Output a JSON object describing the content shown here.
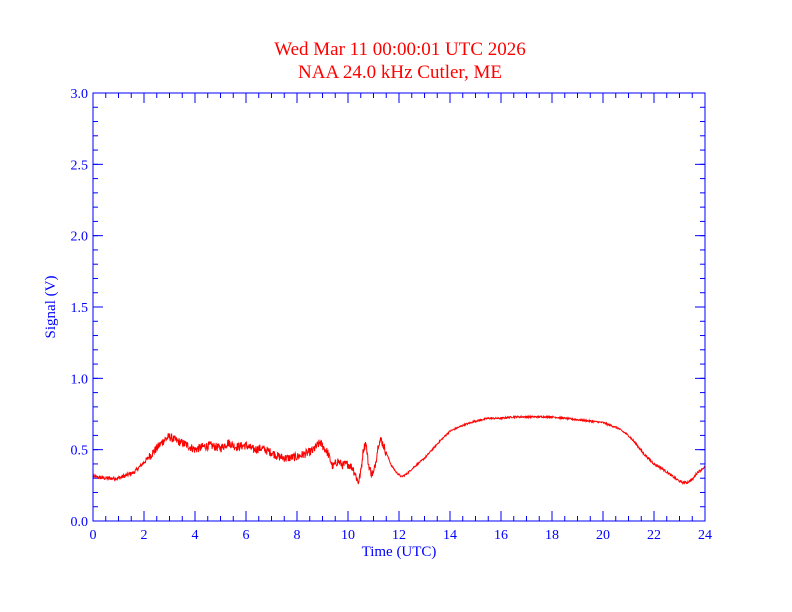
{
  "chart_data": {
    "type": "line",
    "title": "Wed Mar 11 00:00:01 UTC 2026",
    "subtitle": "NAA 24.0 kHz Cutler, ME",
    "xlabel": "Time (UTC)",
    "ylabel": "Signal (V)",
    "xlim": [
      0,
      24
    ],
    "ylim": [
      0,
      3.0
    ],
    "x_major_ticks": [
      0,
      2,
      4,
      6,
      8,
      10,
      12,
      14,
      16,
      18,
      20,
      22,
      24
    ],
    "x_tick_labels": [
      "0",
      "2",
      "4",
      "6",
      "8",
      "10",
      "12",
      "14",
      "16",
      "18",
      "20",
      "22",
      "24"
    ],
    "x_minor_step": 0.5,
    "y_major_ticks": [
      0,
      0.5,
      1.0,
      1.5,
      2.0,
      2.5,
      3.0
    ],
    "y_tick_labels": [
      "0.0",
      "0.5",
      "1.0",
      "1.5",
      "2.0",
      "2.5",
      "3.0"
    ],
    "y_minor_step": 0.1,
    "grid": false,
    "series": [
      {
        "name": "Signal",
        "color": "#ff0000",
        "x": [
          0,
          0.5,
          1.0,
          1.3,
          1.6,
          2.0,
          2.4,
          2.8,
          3.0,
          3.3,
          3.6,
          4.0,
          4.3,
          4.6,
          5.0,
          5.3,
          5.6,
          6.0,
          6.3,
          6.6,
          7.0,
          7.3,
          7.6,
          8.0,
          8.3,
          8.6,
          8.9,
          9.2,
          9.4,
          9.6,
          9.8,
          10.0,
          10.2,
          10.4,
          10.5,
          10.6,
          10.7,
          10.8,
          10.9,
          11.0,
          11.1,
          11.2,
          11.3,
          11.5,
          11.7,
          11.9,
          12.1,
          12.3,
          12.6,
          13.0,
          13.3,
          13.6,
          14.0,
          14.5,
          15.0,
          15.5,
          16.0,
          16.5,
          17.0,
          17.5,
          18.0,
          18.5,
          19.0,
          19.5,
          20.0,
          20.3,
          20.6,
          21.0,
          21.3,
          21.6,
          22.0,
          22.3,
          22.6,
          22.9,
          23.1,
          23.3,
          23.5,
          23.7,
          24.0
        ],
        "y": [
          0.31,
          0.3,
          0.3,
          0.32,
          0.34,
          0.41,
          0.49,
          0.57,
          0.59,
          0.56,
          0.54,
          0.5,
          0.52,
          0.53,
          0.51,
          0.55,
          0.52,
          0.53,
          0.5,
          0.51,
          0.48,
          0.45,
          0.44,
          0.45,
          0.47,
          0.49,
          0.55,
          0.48,
          0.38,
          0.42,
          0.39,
          0.4,
          0.37,
          0.27,
          0.34,
          0.5,
          0.55,
          0.4,
          0.34,
          0.33,
          0.43,
          0.55,
          0.57,
          0.48,
          0.39,
          0.34,
          0.31,
          0.33,
          0.38,
          0.44,
          0.5,
          0.56,
          0.63,
          0.67,
          0.7,
          0.72,
          0.72,
          0.73,
          0.73,
          0.73,
          0.73,
          0.72,
          0.71,
          0.7,
          0.69,
          0.67,
          0.65,
          0.6,
          0.54,
          0.47,
          0.4,
          0.37,
          0.33,
          0.29,
          0.27,
          0.27,
          0.29,
          0.34,
          0.38
        ]
      }
    ]
  },
  "colors": {
    "axis": "#0000ff",
    "trace": "#ff0000",
    "title": "#ff0000"
  }
}
